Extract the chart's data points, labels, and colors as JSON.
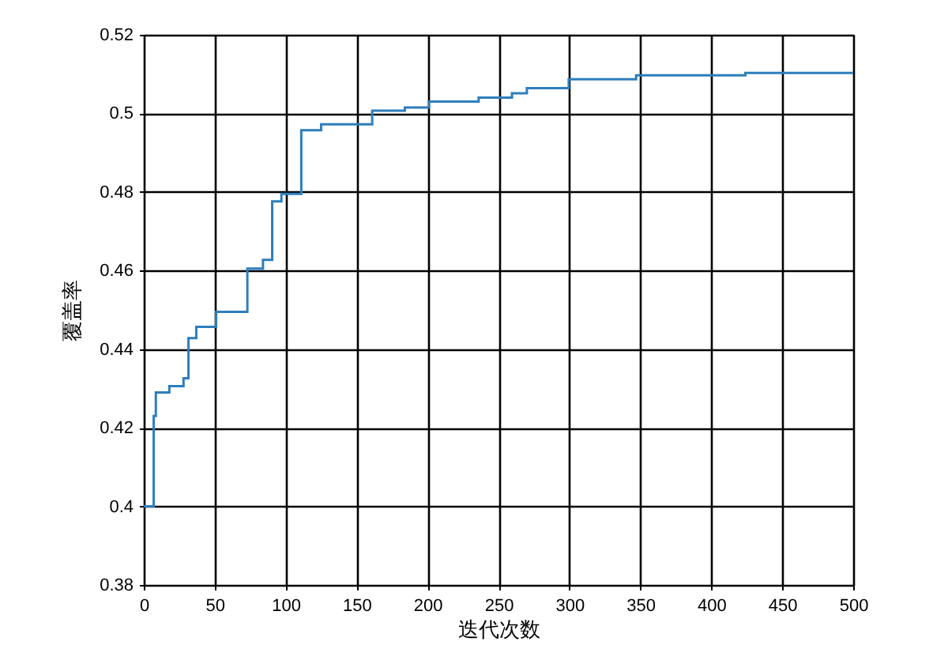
{
  "chart_data": {
    "type": "step",
    "xlabel": "迭代次数",
    "ylabel": "覆盖率",
    "x": [
      0,
      7,
      8.5,
      18,
      28,
      31.5,
      37,
      51,
      73,
      84,
      90.5,
      97,
      111,
      125,
      161,
      184,
      201,
      236,
      259.5,
      270,
      299.5,
      347,
      424,
      500
    ],
    "series": [
      {
        "color": "#2e7ebc",
        "values": [
          0.4,
          0.423,
          0.429,
          0.4306,
          0.4326,
          0.4428,
          0.4457,
          0.4495,
          0.4605,
          0.4627,
          0.4776,
          0.4795,
          0.4957,
          0.4972,
          0.5007,
          0.5015,
          0.503,
          0.504,
          0.5051,
          0.5064,
          0.5087,
          0.5097,
          0.5103,
          0.5103
        ]
      }
    ],
    "xlim": [
      0,
      500
    ],
    "xticks": [
      0,
      50,
      100,
      150,
      200,
      250,
      300,
      350,
      400,
      450,
      500
    ],
    "ylim": [
      0.38,
      0.52
    ],
    "yticks": [
      0.38,
      0.4,
      0.42,
      0.44,
      0.46,
      0.48,
      0.5,
      0.52
    ],
    "grid": true,
    "marker": "none",
    "line_style": "solid"
  }
}
